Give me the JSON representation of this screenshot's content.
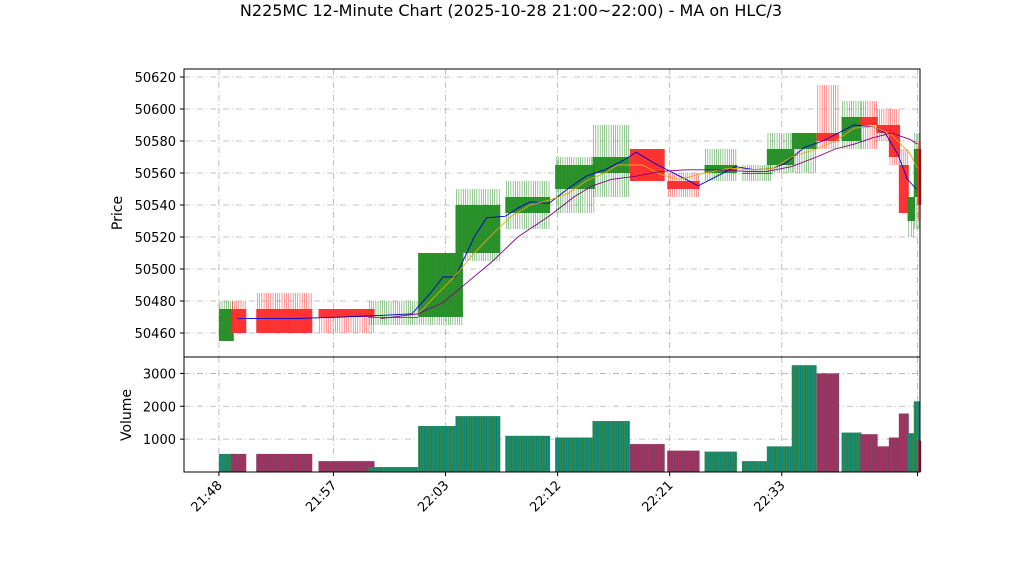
{
  "chart_data": {
    "type": "candlestick",
    "title": "N225MC 12-Minute Chart (2025-10-28 21:00~22:00) - MA on HLC/3",
    "price_panel": {
      "ylabel": "Price",
      "ylim": [
        50445,
        50625
      ],
      "yticks": [
        50460,
        50480,
        50500,
        50520,
        50540,
        50560,
        50580,
        50600,
        50620
      ],
      "grid": true
    },
    "volume_panel": {
      "ylabel": "Volume",
      "ylim": [
        0,
        3500
      ],
      "yticks": [
        1000,
        2000,
        3000
      ],
      "grid": true
    },
    "x_axis": {
      "tick_labels": [
        "21:48",
        "21:57",
        "22:03",
        "22:12",
        "22:21",
        "22:33"
      ],
      "tick_positions": [
        0,
        9.2,
        18.2,
        27.2,
        36.2,
        45.2
      ],
      "xlim": [
        -2.8,
        56.3
      ]
    },
    "colors": {
      "up": "#228B22",
      "down": "#FF2A2A",
      "ma_fast": "#0000CD",
      "ma_mid": "#E8A317",
      "ma_slow": "#800080",
      "volume_up": "#008080",
      "volume_down": "#B03060"
    },
    "candles": [
      {
        "x": 0,
        "w": 1.2,
        "o": 50455,
        "h": 50480,
        "l": 50455,
        "c": 50475,
        "vol": 550
      },
      {
        "x": 1,
        "w": 1.2,
        "o": 50475,
        "h": 50480,
        "l": 50460,
        "c": 50460,
        "vol": 550
      },
      {
        "x": 3,
        "w": 4.5,
        "o": 50475,
        "h": 50485,
        "l": 50460,
        "c": 50460,
        "vol": 550
      },
      {
        "x": 8,
        "w": 4.5,
        "o": 50475,
        "h": 50475,
        "l": 50460,
        "c": 50470,
        "vol": 330
      },
      {
        "x": 12,
        "w": 4.0,
        "o": 50470,
        "h": 50480,
        "l": 50465,
        "c": 50470,
        "vol": 150
      },
      {
        "x": 16,
        "w": 3.6,
        "o": 50470,
        "h": 50510,
        "l": 50465,
        "c": 50510,
        "vol": 1400
      },
      {
        "x": 19,
        "w": 3.6,
        "o": 50510,
        "h": 50550,
        "l": 50505,
        "c": 50540,
        "vol": 1700
      },
      {
        "x": 23,
        "w": 3.6,
        "o": 50535,
        "h": 50555,
        "l": 50525,
        "c": 50545,
        "vol": 1100
      },
      {
        "x": 27,
        "w": 3.2,
        "o": 50550,
        "h": 50570,
        "l": 50535,
        "c": 50565,
        "vol": 1050
      },
      {
        "x": 30,
        "w": 3.0,
        "o": 50560,
        "h": 50590,
        "l": 50545,
        "c": 50570,
        "vol": 1550
      },
      {
        "x": 33,
        "w": 2.8,
        "o": 50575,
        "h": 50575,
        "l": 50555,
        "c": 50555,
        "vol": 850
      },
      {
        "x": 36,
        "w": 2.6,
        "o": 50555,
        "h": 50560,
        "l": 50545,
        "c": 50550,
        "vol": 650
      },
      {
        "x": 39,
        "w": 2.6,
        "o": 50560,
        "h": 50575,
        "l": 50555,
        "c": 50565,
        "vol": 620
      },
      {
        "x": 42,
        "w": 2.4,
        "o": 50560,
        "h": 50565,
        "l": 50555,
        "c": 50560,
        "vol": 330
      },
      {
        "x": 44,
        "w": 2.2,
        "o": 50565,
        "h": 50585,
        "l": 50560,
        "c": 50575,
        "vol": 780
      },
      {
        "x": 46,
        "w": 2.0,
        "o": 50575,
        "h": 50585,
        "l": 50560,
        "c": 50585,
        "vol": 3250
      },
      {
        "x": 48,
        "w": 1.8,
        "o": 50585,
        "h": 50615,
        "l": 50575,
        "c": 50580,
        "vol": 3000
      },
      {
        "x": 50,
        "w": 1.6,
        "o": 50580,
        "h": 50605,
        "l": 50575,
        "c": 50595,
        "vol": 1200
      },
      {
        "x": 51.5,
        "w": 1.4,
        "o": 50595,
        "h": 50605,
        "l": 50575,
        "c": 50590,
        "vol": 1150
      },
      {
        "x": 52.8,
        "w": 1.2,
        "o": 50590,
        "h": 50600,
        "l": 50580,
        "c": 50585,
        "vol": 780
      },
      {
        "x": 53.8,
        "w": 0.9,
        "o": 50590,
        "h": 50600,
        "l": 50565,
        "c": 50570,
        "vol": 1050
      },
      {
        "x": 54.6,
        "w": 0.8,
        "o": 50565,
        "h": 50575,
        "l": 50535,
        "c": 50535,
        "vol": 1780
      },
      {
        "x": 55.3,
        "w": 0.6,
        "o": 50530,
        "h": 50545,
        "l": 50520,
        "c": 50545,
        "vol": 1180
      },
      {
        "x": 55.8,
        "w": 0.5,
        "o": 50545,
        "h": 50585,
        "l": 50525,
        "c": 50575,
        "vol": 2150
      },
      {
        "x": 56.1,
        "w": 0.3,
        "o": 50575,
        "h": 50580,
        "l": 50530,
        "c": 50540,
        "vol": 950
      }
    ],
    "ma_fast": [
      [
        1.5,
        50469
      ],
      [
        6,
        50469
      ],
      [
        10,
        50470
      ],
      [
        13,
        50471
      ],
      [
        15.5,
        50472
      ],
      [
        17,
        50485
      ],
      [
        18,
        50495
      ],
      [
        19,
        50495
      ],
      [
        20.5,
        50520
      ],
      [
        21.5,
        50532
      ],
      [
        23,
        50533
      ],
      [
        24,
        50538
      ],
      [
        25,
        50542
      ],
      [
        26.5,
        50541
      ],
      [
        28,
        50550
      ],
      [
        29.5,
        50558
      ],
      [
        31,
        50562
      ],
      [
        32.5,
        50568
      ],
      [
        33.5,
        50573
      ],
      [
        35,
        50566
      ],
      [
        37,
        50558
      ],
      [
        38.5,
        50552
      ],
      [
        40,
        50558
      ],
      [
        41.5,
        50564
      ],
      [
        43,
        50562
      ],
      [
        44.5,
        50563
      ],
      [
        45.5,
        50566
      ],
      [
        47,
        50576
      ],
      [
        48.5,
        50580
      ],
      [
        50,
        50586
      ],
      [
        51,
        50590
      ],
      [
        52.5,
        50589
      ],
      [
        53.5,
        50585
      ],
      [
        54.5,
        50572
      ],
      [
        55.3,
        50556
      ],
      [
        56,
        50550
      ]
    ],
    "ma_mid": [
      [
        16,
        50472
      ],
      [
        18,
        50488
      ],
      [
        19,
        50496
      ],
      [
        20.5,
        50510
      ],
      [
        22,
        50522
      ],
      [
        23.5,
        50533
      ],
      [
        25,
        50540
      ],
      [
        26.5,
        50543
      ],
      [
        28,
        50547
      ],
      [
        29.5,
        50555
      ],
      [
        31,
        50560
      ],
      [
        32,
        50565
      ],
      [
        34,
        50565
      ],
      [
        35.5,
        50559
      ],
      [
        37,
        50556
      ],
      [
        39,
        50560
      ],
      [
        41,
        50563
      ],
      [
        43,
        50562
      ],
      [
        44.5,
        50563
      ],
      [
        46,
        50570
      ],
      [
        48,
        50575
      ],
      [
        49.5,
        50580
      ],
      [
        51,
        50588
      ],
      [
        52.5,
        50589
      ],
      [
        54,
        50584
      ],
      [
        55.5,
        50572
      ],
      [
        56.1,
        50563
      ]
    ],
    "ma_slow": [
      [
        13,
        50469
      ],
      [
        16,
        50472
      ],
      [
        18,
        50479
      ],
      [
        20,
        50492
      ],
      [
        22,
        50505
      ],
      [
        24,
        50520
      ],
      [
        26.5,
        50533
      ],
      [
        28.5,
        50545
      ],
      [
        30,
        50552
      ],
      [
        31.5,
        50556
      ],
      [
        33.5,
        50558
      ],
      [
        35.5,
        50561
      ],
      [
        37.5,
        50562
      ],
      [
        40,
        50562
      ],
      [
        42.5,
        50561
      ],
      [
        44,
        50561
      ],
      [
        46,
        50564
      ],
      [
        48,
        50570
      ],
      [
        49.5,
        50575
      ],
      [
        51,
        50578
      ],
      [
        52.5,
        50582
      ],
      [
        54,
        50585
      ],
      [
        55.5,
        50581
      ],
      [
        56.1,
        50578
      ]
    ]
  }
}
